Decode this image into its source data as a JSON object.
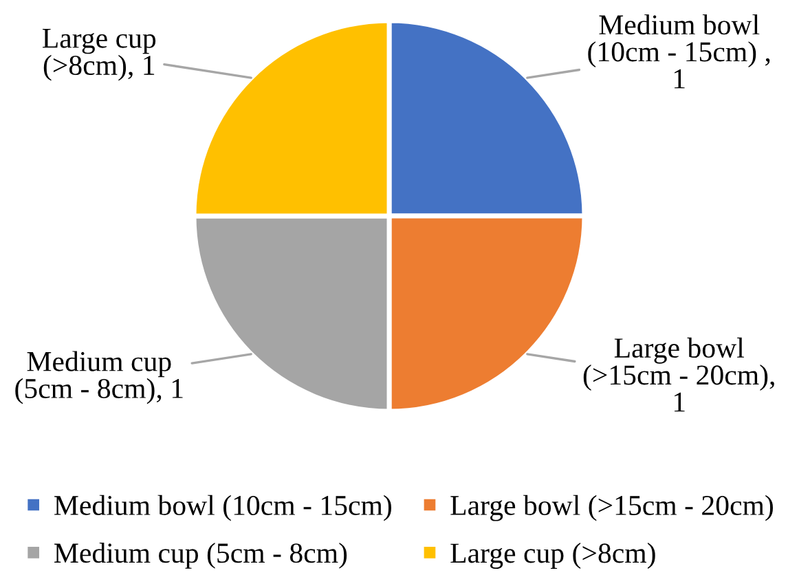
{
  "chart_data": {
    "type": "pie",
    "categories": [
      "Medium bowl (10cm - 15cm)",
      "Large bowl (>15cm - 20cm)",
      "Medium cup (5cm - 8cm)",
      "Large cup (>8cm)"
    ],
    "values": [
      1,
      1,
      1,
      1
    ],
    "colors": [
      "#4472c4",
      "#ed7d31",
      "#a5a5a5",
      "#ffc000"
    ],
    "value_labels": [
      "Medium bowl\n(10cm - 15cm) ,\n1",
      "Large bowl\n(>15cm - 20cm),\n1",
      "Medium cup\n(5cm - 8cm), 1",
      "Large cup\n(>8cm), 1"
    ],
    "legend": "bottom"
  }
}
